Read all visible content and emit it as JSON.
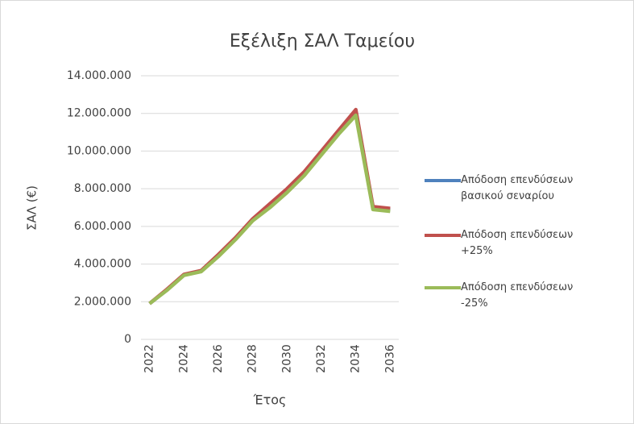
{
  "chart_data": {
    "type": "line",
    "title": "Εξέλιξη ΣΑΛ Ταμείου",
    "x_label": "Έτος",
    "y_label": "ΣΑΛ (€)",
    "categories": [
      "2022",
      null,
      "2024",
      null,
      "2026",
      null,
      "2028",
      null,
      "2030",
      null,
      "2032",
      null,
      "2034",
      null,
      "2036"
    ],
    "series": [
      {
        "name": "Απόδοση επενδύσεων βασικού σεναρίου",
        "color": "#4f81bd",
        "values": [
          1900000,
          2620000,
          3420000,
          3620000,
          4450000,
          5350000,
          6350000,
          7100000,
          7900000,
          8800000,
          9900000,
          11000000,
          12050000,
          6970000,
          6870000
        ]
      },
      {
        "name": "Απόδοση επενδύσεων +25%",
        "color": "#c0504d",
        "values": [
          1900000,
          2650000,
          3450000,
          3650000,
          4500000,
          5400000,
          6400000,
          7200000,
          8000000,
          8900000,
          10000000,
          11100000,
          12200000,
          7050000,
          6950000
        ]
      },
      {
        "name": "Απόδοση επενδύσεων -25%",
        "color": "#9bbb59",
        "values": [
          1900000,
          2600000,
          3400000,
          3600000,
          4400000,
          5300000,
          6300000,
          7000000,
          7800000,
          8700000,
          9800000,
          10900000,
          11900000,
          6900000,
          6800000
        ]
      }
    ],
    "ylim": [
      0,
      14000000
    ],
    "yticks": [
      0,
      {
        "value": 2000000,
        "label": "2.000.000"
      },
      {
        "value": 4000000,
        "label": "4.000.000"
      },
      {
        "value": 6000000,
        "label": "6.000.000"
      },
      {
        "value": 8000000,
        "label": "8.000.000"
      },
      {
        "value": 10000000,
        "label": "10.000.000"
      },
      {
        "value": 12000000,
        "label": "12.000.000"
      },
      {
        "value": 14000000,
        "label": "14.000.000"
      }
    ],
    "grid": true,
    "legend": "right"
  }
}
